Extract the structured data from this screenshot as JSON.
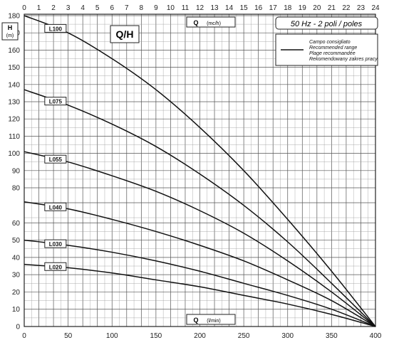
{
  "chart_data": {
    "type": "line",
    "title": "Q/H",
    "subtitle": "50 Hz - 2 poli / poles",
    "ylabel": "H",
    "ylabel_unit": "(m)",
    "x_top_label": "Q",
    "x_top_unit": "(mc/h)",
    "x_bottom_label": "Q",
    "x_bottom_unit": "(l/min)",
    "x_top_ticks": [
      "0",
      "1",
      "2",
      "3",
      "4",
      "5",
      "6",
      "7",
      "8",
      "9",
      "10",
      "11",
      "12",
      "13",
      "14",
      "15",
      "16",
      "17",
      "18",
      "19",
      "20",
      "21",
      "22",
      "23",
      "24"
    ],
    "x_bottom_ticks": [
      "0",
      "50",
      "100",
      "150",
      "200",
      "250",
      "300",
      "350",
      "400"
    ],
    "y_ticks_lower": [
      "0",
      "10",
      "20",
      "30",
      "40",
      "50",
      "60"
    ],
    "y_ticks_upper": [
      "80",
      "90",
      "100",
      "110",
      "120",
      "130",
      "140",
      "150",
      "160",
      "170",
      "180"
    ],
    "xlim": [
      0,
      400
    ],
    "legend": {
      "lines": [
        "Campo consigliato",
        "Recommended range",
        "Plage recommandée",
        "Rekomendowany zakres pracy"
      ],
      "placement": "top-right"
    },
    "series": [
      {
        "name": "L100",
        "x": [
          0,
          50,
          100,
          150,
          200,
          250,
          300,
          350,
          400
        ],
        "y": [
          180,
          170,
          155,
          137,
          115,
          90,
          62,
          32,
          0
        ]
      },
      {
        "name": "L075",
        "x": [
          0,
          50,
          100,
          150,
          200,
          250,
          300,
          350,
          400
        ],
        "y": [
          137,
          128,
          117,
          104,
          88,
          70,
          49,
          25,
          0
        ]
      },
      {
        "name": "L055",
        "x": [
          0,
          50,
          100,
          150,
          200,
          250,
          300,
          350,
          400
        ],
        "y": [
          101,
          95,
          87,
          78,
          67,
          54,
          38,
          20,
          0
        ]
      },
      {
        "name": "L040",
        "x": [
          0,
          50,
          100,
          150,
          200,
          250,
          300,
          350,
          400
        ],
        "y": [
          72,
          68,
          62,
          55,
          47,
          38,
          27,
          15,
          0
        ]
      },
      {
        "name": "L030",
        "x": [
          0,
          50,
          100,
          150,
          200,
          250,
          300,
          350,
          400
        ],
        "y": [
          50,
          47,
          43,
          38,
          32,
          25,
          18,
          10,
          0
        ]
      },
      {
        "name": "L020",
        "x": [
          0,
          50,
          100,
          150,
          200,
          250,
          300,
          350,
          400
        ],
        "y": [
          36,
          34,
          31,
          27,
          23,
          18,
          13,
          7,
          0
        ]
      }
    ]
  }
}
